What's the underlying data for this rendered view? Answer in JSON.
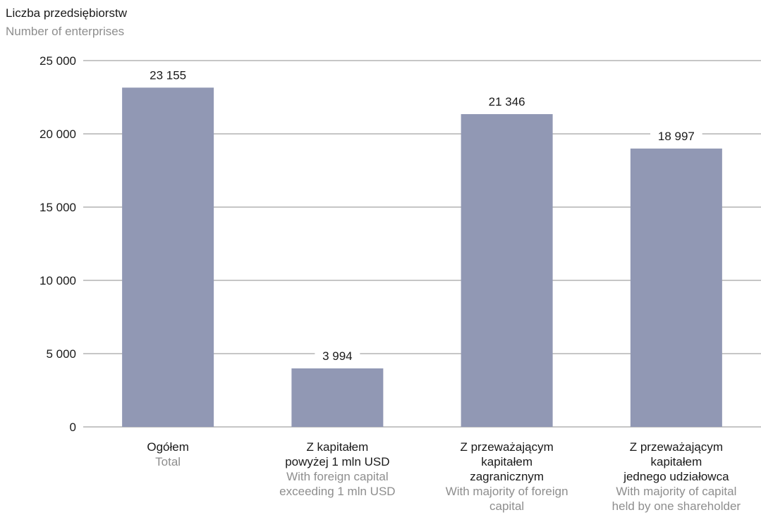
{
  "chart_data": {
    "type": "bar",
    "ylabel": "Liczba przedsiębiorstw",
    "ylabel_en": "Number of enterprises",
    "ylim": [
      0,
      25000
    ],
    "yticks": [
      0,
      5000,
      10000,
      15000,
      20000,
      25000
    ],
    "ytick_labels": [
      "0",
      "5 000",
      "10 000",
      "15 000",
      "20 000",
      "25 000"
    ],
    "grid": true,
    "categories": [
      {
        "pl": [
          "Ogółem"
        ],
        "en": [
          "Total"
        ]
      },
      {
        "pl": [
          "Z kapitałem",
          "powyżej 1 mln USD"
        ],
        "en": [
          "With foreign capital",
          "exceeding 1 mln USD"
        ]
      },
      {
        "pl": [
          "Z przeważającym",
          "kapitałem",
          "zagranicznym"
        ],
        "en": [
          "With majority of foreign",
          "capital"
        ]
      },
      {
        "pl": [
          "Z przeważającym",
          "kapitałem",
          "jednego udziałowca"
        ],
        "en": [
          "With majority of capital",
          "held by one shareholder"
        ]
      }
    ],
    "values": [
      23155,
      3994,
      21346,
      18997
    ],
    "value_labels": [
      "23 155",
      "3 994",
      "21 346",
      "18 997"
    ],
    "colors": {
      "bar": "#9198b4",
      "grid": "#8c8c8c",
      "text": "#1a1a1a",
      "text_secondary": "#8e8e8e"
    }
  }
}
